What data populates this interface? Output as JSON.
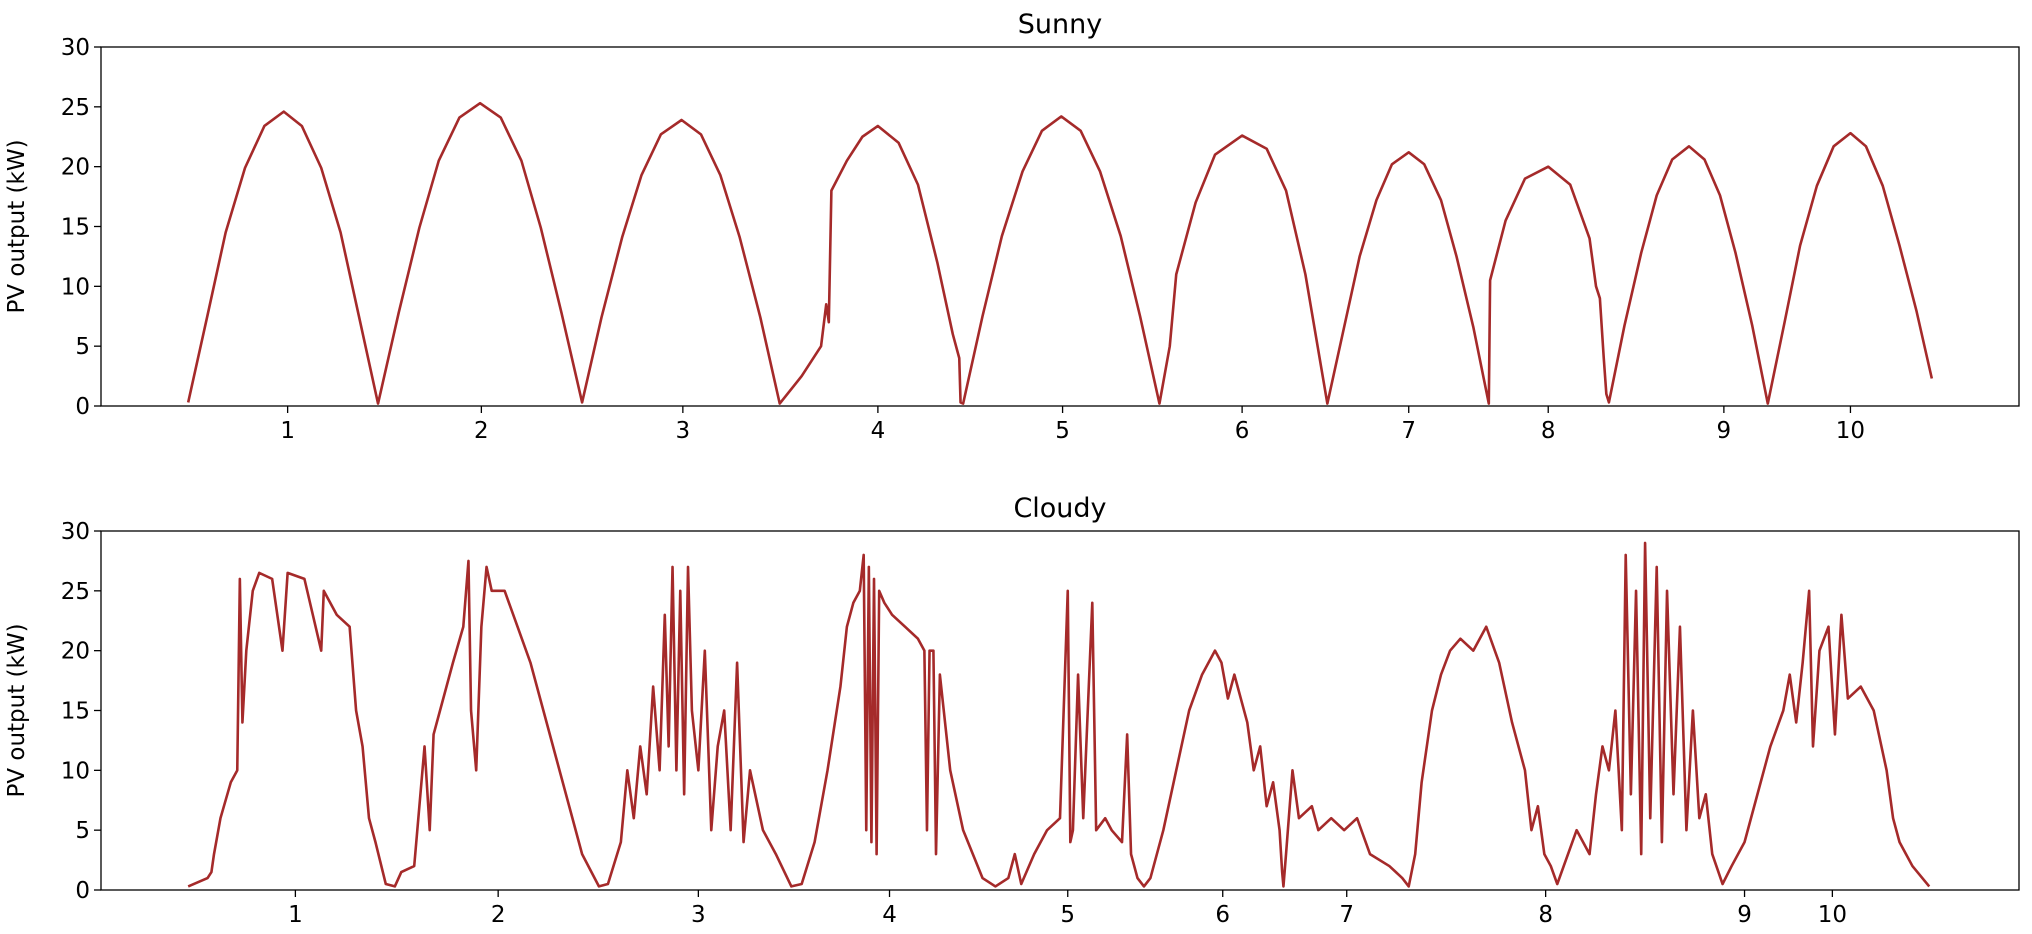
{
  "chart_data": [
    {
      "type": "line",
      "title": "Sunny",
      "y_label": "PV output (kW)",
      "color": "#a52a2a",
      "xlim": [
        -67.5,
        1417.5
      ],
      "ylim": [
        0,
        30
      ],
      "yticks": [
        0,
        5,
        10,
        15,
        20,
        25,
        30
      ],
      "xticks": [
        {
          "value": 77,
          "label": "1"
        },
        {
          "value": 227,
          "label": "2"
        },
        {
          "value": 383,
          "label": "3"
        },
        {
          "value": 534,
          "label": "4"
        },
        {
          "value": 677,
          "label": "5"
        },
        {
          "value": 816,
          "label": "6"
        },
        {
          "value": 945,
          "label": "7"
        },
        {
          "value": 1053,
          "label": "8"
        },
        {
          "value": 1189,
          "label": "9"
        },
        {
          "value": 1287,
          "label": "10"
        }
      ],
      "x": [
        0,
        15,
        29,
        44,
        59,
        74,
        88,
        103,
        118,
        132,
        147,
        163,
        179,
        194,
        210,
        226,
        242,
        258,
        273,
        289,
        305,
        320,
        336,
        351,
        366,
        382,
        397,
        412,
        427,
        443,
        458,
        475,
        490,
        494,
        496,
        498,
        510,
        522,
        534,
        550,
        565,
        580,
        592,
        597,
        598,
        600,
        615,
        630,
        646,
        661,
        676,
        691,
        706,
        722,
        737,
        752,
        760,
        765,
        780,
        795,
        816,
        835,
        850,
        865,
        882,
        895,
        907,
        920,
        932,
        945,
        957,
        970,
        982,
        995,
        1007,
        1008,
        1020,
        1035,
        1053,
        1070,
        1085,
        1090,
        1093,
        1096,
        1098,
        1100,
        1112,
        1125,
        1137,
        1149,
        1162,
        1174,
        1186,
        1198,
        1211,
        1223,
        1236,
        1248,
        1261,
        1274,
        1287,
        1299,
        1312,
        1325,
        1338,
        1350
      ],
      "values": [
        0.3,
        7.6,
        14.5,
        19.9,
        23.4,
        24.6,
        23.4,
        19.9,
        14.5,
        7.6,
        0.2,
        7.8,
        14.9,
        20.5,
        24.1,
        25.3,
        24.1,
        20.5,
        14.9,
        7.8,
        0.3,
        7.4,
        14.1,
        19.3,
        22.7,
        23.9,
        22.7,
        19.3,
        14.1,
        7.4,
        0.2,
        2.5,
        5,
        8.5,
        7,
        18,
        20.5,
        22.5,
        23.4,
        22,
        18.5,
        12,
        6,
        4,
        0.3,
        0.2,
        7.5,
        14.2,
        19.6,
        23,
        24.2,
        23,
        19.6,
        14.2,
        7.5,
        0.2,
        5,
        11,
        17,
        21,
        22.6,
        21.5,
        18,
        11,
        0.2,
        6.6,
        12.5,
        17.2,
        20.2,
        21.2,
        20.2,
        17.2,
        12.5,
        6.6,
        0.2,
        10.5,
        15.5,
        19,
        20,
        18.5,
        14,
        10,
        9,
        4,
        1,
        0.3,
        6.7,
        12.8,
        17.6,
        20.6,
        21.7,
        20.6,
        17.6,
        12.8,
        6.7,
        0.2,
        7,
        13.4,
        18.4,
        21.7,
        22.8,
        21.7,
        18.4,
        13.4,
        8,
        2.3
      ]
    },
    {
      "type": "line",
      "title": "Cloudy",
      "y_label": "PV output (kW)",
      "color": "#a52a2a",
      "xlim": [
        -67.5,
        1417.5
      ],
      "ylim": [
        0,
        30
      ],
      "yticks": [
        0,
        5,
        10,
        15,
        20,
        25,
        30
      ],
      "xticks": [
        {
          "value": 83,
          "label": "1"
        },
        {
          "value": 240,
          "label": "2"
        },
        {
          "value": 395,
          "label": "3"
        },
        {
          "value": 543,
          "label": "4"
        },
        {
          "value": 681,
          "label": "5"
        },
        {
          "value": 801,
          "label": "6"
        },
        {
          "value": 897,
          "label": "7"
        },
        {
          "value": 1051,
          "label": "8"
        },
        {
          "value": 1205,
          "label": "9"
        },
        {
          "value": 1273,
          "label": "10"
        }
      ],
      "x": [
        0,
        15,
        18,
        20,
        25,
        33,
        38,
        40,
        42,
        45,
        50,
        55,
        65,
        73,
        77,
        90,
        103,
        105,
        115,
        125,
        130,
        135,
        140,
        145,
        153,
        160,
        165,
        175,
        183,
        187,
        190,
        195,
        205,
        213,
        217,
        219,
        223,
        227,
        231,
        235,
        245,
        255,
        265,
        275,
        285,
        295,
        305,
        318,
        325,
        335,
        340,
        345,
        350,
        355,
        360,
        365,
        369,
        372,
        375,
        378,
        381,
        384,
        387,
        390,
        395,
        400,
        405,
        410,
        415,
        420,
        425,
        430,
        435,
        445,
        455,
        467,
        475,
        485,
        495,
        505,
        510,
        515,
        520,
        523,
        525,
        527,
        529,
        531,
        533,
        535,
        539,
        545,
        555,
        565,
        570,
        572,
        574,
        577,
        579,
        582,
        590,
        600,
        615,
        625,
        635,
        640,
        645,
        655,
        665,
        675,
        681,
        683,
        685,
        689,
        693,
        700,
        703,
        710,
        715,
        723,
        727,
        730,
        735,
        740,
        745,
        755,
        765,
        775,
        785,
        795,
        800,
        805,
        810,
        820,
        825,
        830,
        835,
        840,
        845,
        847,
        848,
        850,
        855,
        860,
        870,
        875,
        885,
        895,
        905,
        915,
        930,
        940,
        945,
        950,
        955,
        963,
        970,
        977,
        985,
        995,
        1005,
        1015,
        1025,
        1035,
        1040,
        1045,
        1050,
        1055,
        1060,
        1065,
        1075,
        1085,
        1090,
        1095,
        1100,
        1105,
        1110,
        1113,
        1117,
        1121,
        1125,
        1128,
        1132,
        1137,
        1141,
        1145,
        1150,
        1155,
        1160,
        1165,
        1170,
        1175,
        1180,
        1188,
        1195,
        1205,
        1215,
        1225,
        1235,
        1240,
        1245,
        1250,
        1255,
        1258,
        1263,
        1270,
        1275,
        1280,
        1285,
        1295,
        1305,
        1315,
        1320,
        1325,
        1335,
        1348
      ],
      "values": [
        0.3,
        1,
        1.5,
        3,
        6,
        9,
        10,
        26,
        14,
        20,
        25,
        26.5,
        26,
        20,
        26.5,
        26,
        20,
        25,
        23,
        22,
        15,
        12,
        6,
        4,
        0.5,
        0.3,
        1.5,
        2,
        12,
        5,
        13,
        15,
        19,
        22,
        27.5,
        15,
        10,
        22,
        27,
        25,
        25,
        22,
        19,
        15,
        11,
        7,
        3,
        0.3,
        0.5,
        4,
        10,
        6,
        12,
        8,
        17,
        10,
        23,
        12,
        27,
        10,
        25,
        8,
        27,
        15,
        10,
        20,
        5,
        12,
        15,
        5,
        19,
        4,
        10,
        5,
        3,
        0.3,
        0.5,
        4,
        10,
        17,
        22,
        24,
        25,
        28,
        5,
        27,
        4,
        26,
        3,
        25,
        24,
        23,
        22,
        21,
        20,
        5,
        20,
        20,
        3,
        18,
        10,
        5,
        1,
        0.3,
        1,
        3,
        0.5,
        3,
        5,
        6,
        25,
        4,
        5,
        18,
        6,
        24,
        5,
        6,
        5,
        4,
        13,
        3,
        1,
        0.3,
        1,
        5,
        10,
        15,
        18,
        20,
        19,
        16,
        18,
        14,
        10,
        12,
        7,
        9,
        5,
        1.5,
        0.3,
        3,
        10,
        6,
        7,
        5,
        6,
        5,
        6,
        3,
        2,
        1,
        0.3,
        3,
        9,
        15,
        18,
        20,
        21,
        20,
        22,
        19,
        14,
        10,
        5,
        7,
        3,
        2,
        0.5,
        2,
        5,
        3,
        8,
        12,
        10,
        15,
        5,
        28,
        8,
        25,
        3,
        29,
        6,
        27,
        4,
        25,
        8,
        22,
        5,
        15,
        6,
        8,
        3,
        0.5,
        2,
        4,
        8,
        12,
        15,
        18,
        14,
        19,
        25,
        12,
        20,
        22,
        13,
        23,
        16,
        17,
        15,
        10,
        6,
        4,
        2,
        0.3
      ]
    }
  ]
}
